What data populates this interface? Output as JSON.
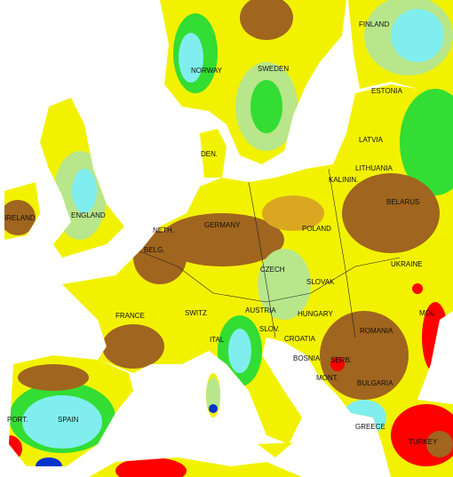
{
  "labels": [
    "FINLAND",
    "NORWAY",
    "SWEDEN",
    "ESTONIA",
    "LATVIA",
    "DEN.",
    "LITHUANIA",
    "KALININ.",
    "IRELAND",
    "ENGLAND",
    "BELARUS",
    "NETH.",
    "GERMANY",
    "POLAND",
    "BELG.",
    "CZECH",
    "SLOVAK",
    "UKRAINE",
    "FRANCE",
    "SWITZ",
    "AUSTRIA",
    "HUNGARY",
    "MOL",
    "ROMANIA",
    "SLOV.",
    "CROATIA",
    "BOSNIA",
    "SERB.",
    "ITAL",
    "BULGARIA",
    "MONT.",
    "PORT.",
    "SPAIN",
    "GREECE",
    "TURKEY"
  ]
}
